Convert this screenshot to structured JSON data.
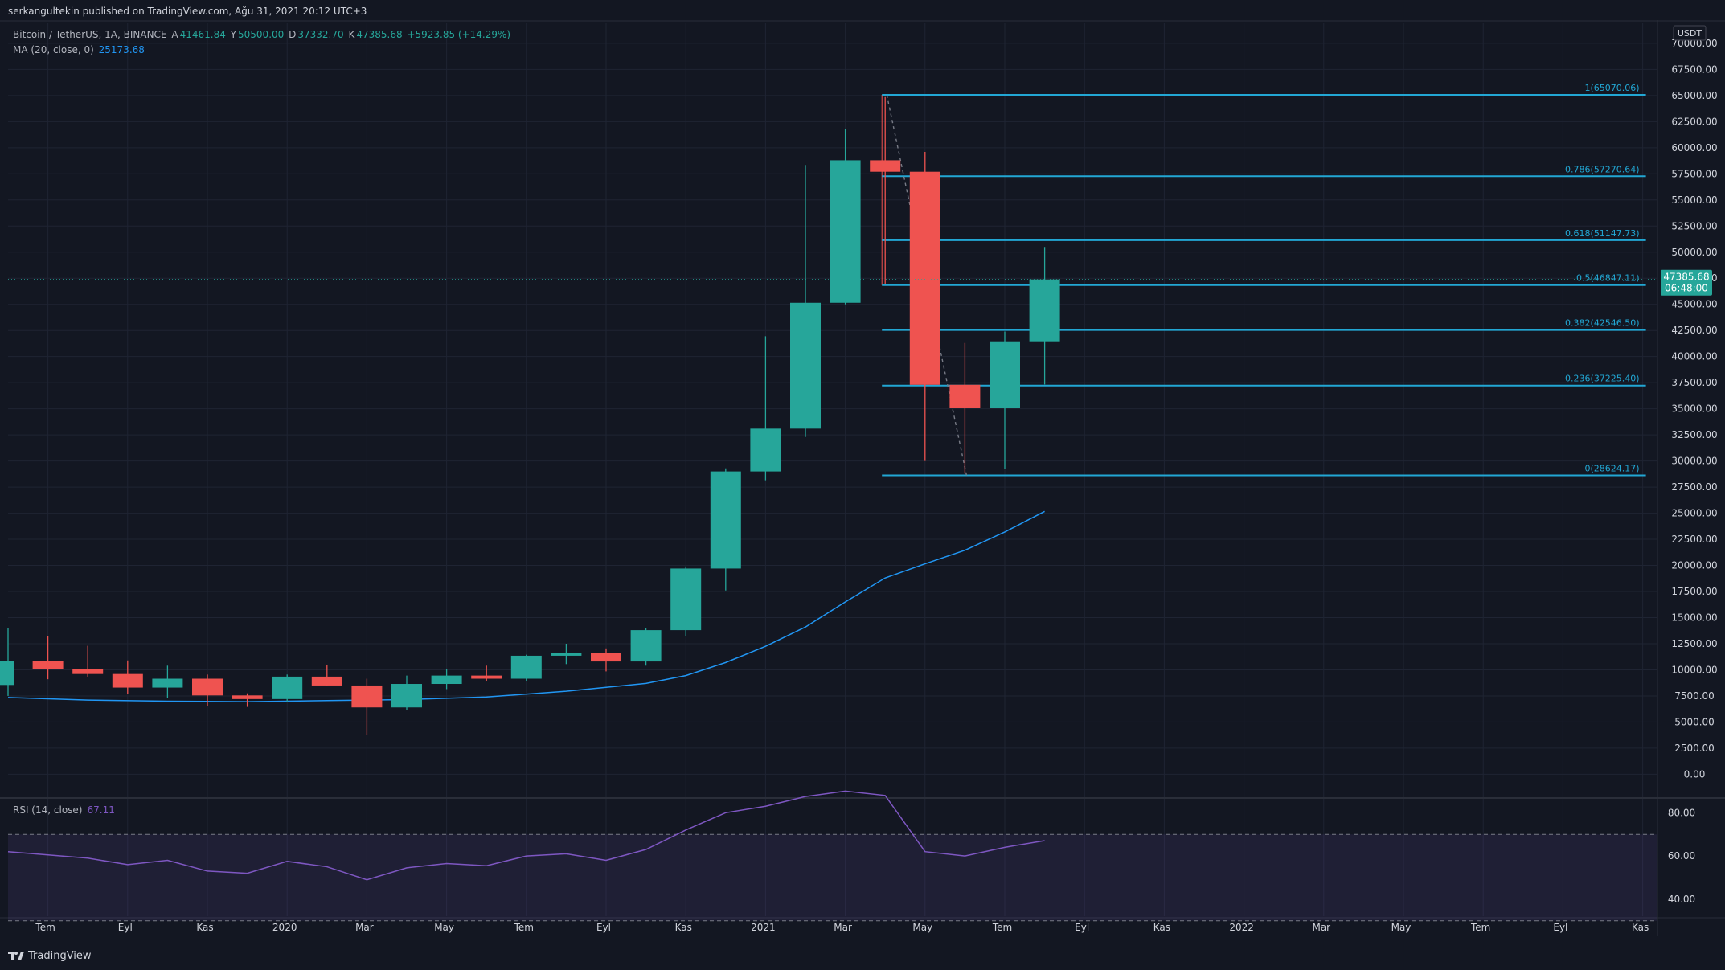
{
  "publisher": "serkangultekin published on TradingView.com, Ağu 31, 2021 20:12 UTC+3",
  "legend": {
    "symbol": "Bitcoin / TetherUS, 1A, BINANCE",
    "o_label": "A",
    "o_val": "41461.84",
    "h_label": "Y",
    "h_val": "50500.00",
    "l_label": "D",
    "l_val": "37332.70",
    "c_label": "K",
    "c_val": "47385.68",
    "change": "+5923.85 (+14.29%)",
    "ma_label": "MA (20, close, 0)",
    "ma_val": "25173.68"
  },
  "rsi_legend": {
    "label": "RSI (14, close)",
    "value": "67.11"
  },
  "footer": {
    "brand": "TradingView"
  },
  "currency": "USDT",
  "price_badge": {
    "price": "47385.68",
    "countdown": "06:48:00"
  },
  "colors": {
    "background": "#131722",
    "grid": "#1f2433",
    "up": "#26a69a",
    "down": "#ef5350",
    "ma": "#2196f3",
    "fib": "#22a7d4",
    "rsi": "#7e57c2",
    "axis_text": "#d1d4dc"
  },
  "chart_data": {
    "type": "candlestick",
    "interval": "1 month",
    "y_axis": {
      "min": 0,
      "max": 70000,
      "step": 2500,
      "tick_labels": [
        "0.00",
        "2500.00",
        "5000.00",
        "7500.00",
        "10000.00",
        "12500.00",
        "15000.00",
        "17500.00",
        "20000.00",
        "22500.00",
        "25000.00",
        "27500.00",
        "30000.00",
        "32500.00",
        "35000.00",
        "37500.00",
        "40000.00",
        "42500.00",
        "45000.00",
        "47500.00",
        "50000.00",
        "52500.00",
        "55000.00",
        "57500.00",
        "60000.00",
        "62500.00",
        "65000.00",
        "67500.00",
        "70000.00"
      ]
    },
    "x_axis": {
      "tick_labels": [
        {
          "label": "Tem",
          "month": 1
        },
        {
          "label": "Eyl",
          "month": 3
        },
        {
          "label": "Kas",
          "month": 5
        },
        {
          "label": "2020",
          "month": 7
        },
        {
          "label": "Mar",
          "month": 9
        },
        {
          "label": "May",
          "month": 11
        },
        {
          "label": "Tem",
          "month": 13
        },
        {
          "label": "Eyl",
          "month": 15
        },
        {
          "label": "Kas",
          "month": 17
        },
        {
          "label": "2021",
          "month": 19
        },
        {
          "label": "Mar",
          "month": 21
        },
        {
          "label": "May",
          "month": 23
        },
        {
          "label": "Tem",
          "month": 25
        },
        {
          "label": "Eyl",
          "month": 27
        },
        {
          "label": "Kas",
          "month": 29
        },
        {
          "label": "2022",
          "month": 31
        },
        {
          "label": "Mar",
          "month": 33
        },
        {
          "label": "May",
          "month": 35
        },
        {
          "label": "Tem",
          "month": 37
        },
        {
          "label": "Eyl",
          "month": 39
        },
        {
          "label": "Kas",
          "month": 41
        }
      ]
    },
    "candles": [
      {
        "month": "2019-06",
        "o": 8550,
        "h": 13970,
        "l": 7500,
        "c": 10850
      },
      {
        "month": "2019-07",
        "o": 10850,
        "h": 13200,
        "l": 9100,
        "c": 10100
      },
      {
        "month": "2019-08",
        "o": 10100,
        "h": 12300,
        "l": 9350,
        "c": 9600
      },
      {
        "month": "2019-09",
        "o": 9600,
        "h": 10900,
        "l": 7700,
        "c": 8300
      },
      {
        "month": "2019-10",
        "o": 8300,
        "h": 10400,
        "l": 7300,
        "c": 9150
      },
      {
        "month": "2019-11",
        "o": 9150,
        "h": 9550,
        "l": 6550,
        "c": 7550
      },
      {
        "month": "2019-12",
        "o": 7550,
        "h": 7750,
        "l": 6450,
        "c": 7200
      },
      {
        "month": "2020-01",
        "o": 7200,
        "h": 9550,
        "l": 6900,
        "c": 9350
      },
      {
        "month": "2020-02",
        "o": 9350,
        "h": 10500,
        "l": 8450,
        "c": 8500
      },
      {
        "month": "2020-03",
        "o": 8500,
        "h": 9150,
        "l": 3780,
        "c": 6400
      },
      {
        "month": "2020-04",
        "o": 6400,
        "h": 9450,
        "l": 6150,
        "c": 8650
      },
      {
        "month": "2020-05",
        "o": 8650,
        "h": 10100,
        "l": 8150,
        "c": 9450
      },
      {
        "month": "2020-06",
        "o": 9450,
        "h": 10400,
        "l": 8950,
        "c": 9150
      },
      {
        "month": "2020-07",
        "o": 9150,
        "h": 11450,
        "l": 8950,
        "c": 11350
      },
      {
        "month": "2020-08",
        "o": 11350,
        "h": 12500,
        "l": 10550,
        "c": 11650
      },
      {
        "month": "2020-09",
        "o": 11650,
        "h": 12050,
        "l": 9850,
        "c": 10800
      },
      {
        "month": "2020-10",
        "o": 10800,
        "h": 14000,
        "l": 10400,
        "c": 13800
      },
      {
        "month": "2020-11",
        "o": 13800,
        "h": 19900,
        "l": 13250,
        "c": 19700
      },
      {
        "month": "2020-12",
        "o": 19700,
        "h": 29300,
        "l": 17600,
        "c": 29000
      },
      {
        "month": "2021-01",
        "o": 29000,
        "h": 41950,
        "l": 28150,
        "c": 33100
      },
      {
        "month": "2021-02",
        "o": 33100,
        "h": 58350,
        "l": 32300,
        "c": 45150
      },
      {
        "month": "2021-03",
        "o": 45150,
        "h": 61800,
        "l": 45000,
        "c": 58800
      },
      {
        "month": "2021-04",
        "o": 58800,
        "h": 64850,
        "l": 46950,
        "c": 57700
      },
      {
        "month": "2021-05",
        "o": 57700,
        "h": 59600,
        "l": 30000,
        "c": 37300
      },
      {
        "month": "2021-06",
        "o": 37300,
        "h": 41300,
        "l": 28800,
        "c": 35050
      },
      {
        "month": "2021-07",
        "o": 35050,
        "h": 42400,
        "l": 29250,
        "c": 41460
      },
      {
        "month": "2021-08",
        "o": 41461.84,
        "h": 50500,
        "l": 37332.7,
        "c": 47385.68
      }
    ],
    "ma_line": {
      "name": "MA (20, close, 0)",
      "points": [
        {
          "month": 0,
          "v": 7350
        },
        {
          "month": 2,
          "v": 7100
        },
        {
          "month": 4,
          "v": 7000
        },
        {
          "month": 6,
          "v": 6950
        },
        {
          "month": 8,
          "v": 7050
        },
        {
          "month": 10,
          "v": 7150
        },
        {
          "month": 12,
          "v": 7400
        },
        {
          "month": 14,
          "v": 7950
        },
        {
          "month": 16,
          "v": 8700
        },
        {
          "month": 17,
          "v": 9450
        },
        {
          "month": 18,
          "v": 10700
        },
        {
          "month": 19,
          "v": 12250
        },
        {
          "month": 20,
          "v": 14100
        },
        {
          "month": 21,
          "v": 16500
        },
        {
          "month": 22,
          "v": 18800
        },
        {
          "month": 23,
          "v": 20150
        },
        {
          "month": 24,
          "v": 21450
        },
        {
          "month": 25,
          "v": 23200
        },
        {
          "month": 26,
          "v": 25173.68
        }
      ]
    },
    "fibonacci": {
      "start_month": 22,
      "end_month": 41,
      "levels": [
        {
          "label": "1(65070.06)",
          "price": 65070.06
        },
        {
          "label": "0.786(57270.64)",
          "price": 57270.64
        },
        {
          "label": "0.618(51147.73)",
          "price": 51147.73
        },
        {
          "label": "0.5(46847.11)",
          "price": 46847.11
        },
        {
          "label": "0.382(42546.50)",
          "price": 42546.5
        },
        {
          "label": "0.236(37225.40)",
          "price": 37225.4
        },
        {
          "label": "0(28624.17)",
          "price": 28624.17
        }
      ],
      "trend_line": [
        {
          "month": 22,
          "v": 65070.06
        },
        {
          "month": 24,
          "v": 28624.17
        }
      ]
    },
    "last_price": 47385.68,
    "rsi": {
      "name": "RSI (14, close)",
      "y_ticks": [
        "40.00",
        "60.00",
        "80.00"
      ],
      "upper_band": 70,
      "lower_band": 30,
      "values": [
        62,
        60.5,
        59,
        56,
        58,
        53,
        52,
        57.5,
        55,
        49,
        54.5,
        56.5,
        55.5,
        60,
        61,
        58,
        63,
        72,
        80,
        83,
        87.5,
        90,
        88,
        62,
        60,
        64,
        67.11
      ]
    }
  }
}
